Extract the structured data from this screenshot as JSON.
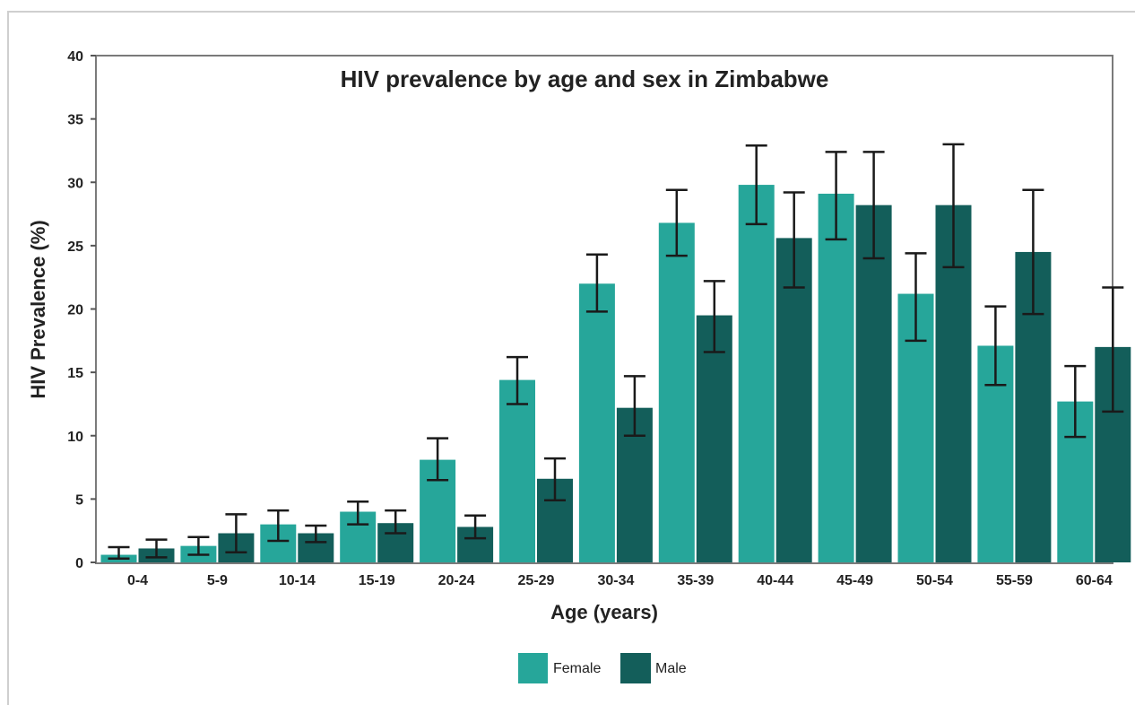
{
  "chart_data": {
    "type": "bar",
    "title": "HIV prevalence by age and sex in Zimbabwe",
    "xlabel": "Age (years)",
    "ylabel": "HIV Prevalence (%)",
    "ylim": [
      0,
      40
    ],
    "yticks": [
      0,
      5,
      10,
      15,
      20,
      25,
      30,
      35,
      40
    ],
    "grid": false,
    "legend_position": "bottom",
    "categories": [
      "0-4",
      "5-9",
      "10-14",
      "15-19",
      "20-24",
      "25-29",
      "30-34",
      "35-39",
      "40-44",
      "45-49",
      "50-54",
      "55-59",
      "60-64"
    ],
    "series": [
      {
        "name": "Female",
        "color": "#26a69a",
        "values": [
          0.6,
          1.3,
          3.0,
          4.0,
          8.1,
          14.4,
          22.0,
          26.8,
          29.8,
          29.1,
          21.2,
          17.1,
          12.7
        ],
        "error_low": [
          0.3,
          0.6,
          1.7,
          3.0,
          6.5,
          12.5,
          19.8,
          24.2,
          26.7,
          25.5,
          17.5,
          14.0,
          9.9
        ],
        "error_high": [
          1.2,
          2.0,
          4.1,
          4.8,
          9.8,
          16.2,
          24.3,
          29.4,
          32.9,
          32.4,
          24.4,
          20.2,
          15.5
        ]
      },
      {
        "name": "Male",
        "color": "#135e5a",
        "values": [
          1.1,
          2.3,
          2.3,
          3.1,
          2.8,
          6.6,
          12.2,
          19.5,
          25.6,
          28.2,
          28.2,
          24.5,
          17.0
        ],
        "error_low": [
          0.4,
          0.8,
          1.6,
          2.3,
          1.9,
          4.9,
          10.0,
          16.6,
          21.7,
          24.0,
          23.3,
          19.6,
          11.9
        ],
        "error_high": [
          1.8,
          3.8,
          2.9,
          4.1,
          3.7,
          8.2,
          14.7,
          22.2,
          29.2,
          32.4,
          33.0,
          29.4,
          21.7
        ]
      }
    ]
  }
}
